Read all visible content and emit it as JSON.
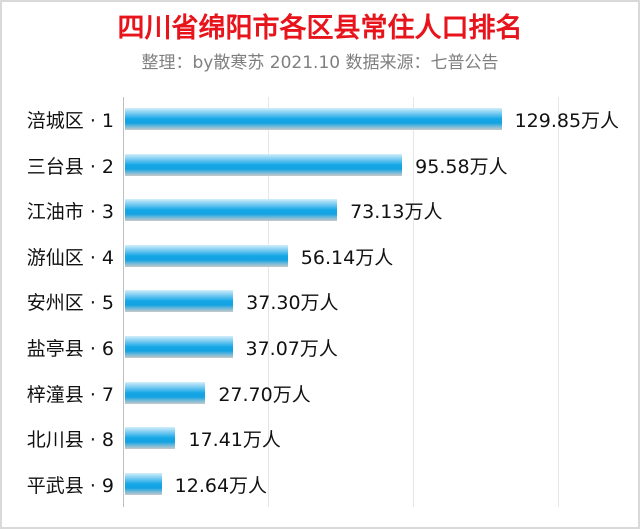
{
  "header": {
    "title": "四川省绵阳市各区县常住人口排名",
    "subtitle": "整理：by散寒苏  2021.10  数据来源：七普公告"
  },
  "colors": {
    "title": "#e8141c",
    "subtitle": "#7f7f7f",
    "bar": "#14a6e6",
    "gridline": "#e6e6e6"
  },
  "chart_data": {
    "type": "bar",
    "orientation": "horizontal",
    "title": "四川省绵阳市各区县常住人口排名",
    "subtitle": "整理：by散寒苏  2021.10  数据来源：七普公告",
    "xlabel": "",
    "ylabel": "",
    "unit": "万人",
    "xlim": [
      0,
      175
    ],
    "gridlines_x": [
      0,
      50,
      100,
      150
    ],
    "grid": true,
    "legend": null,
    "categories": [
      "涪城区 · 1",
      "三台县 · 2",
      "江油市 · 3",
      "游仙区 · 4",
      "安州区 · 5",
      "盐亭县 · 6",
      "梓潼县 · 7",
      "北川县 · 8",
      "平武县 · 9"
    ],
    "values": [
      129.85,
      95.58,
      73.13,
      56.14,
      37.3,
      37.07,
      27.7,
      17.41,
      12.64
    ],
    "labels": [
      "129.85万人",
      "95.58万人",
      "73.13万人",
      "56.14万人",
      "37.30万人",
      "37.07万人",
      "27.70万人",
      "17.41万人",
      "12.64万人"
    ]
  }
}
